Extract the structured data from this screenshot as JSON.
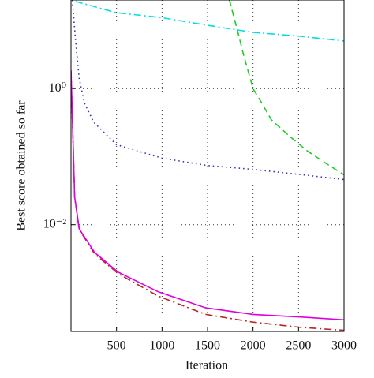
{
  "chart_data": {
    "type": "line",
    "x_label": "Iteration",
    "y_label": "Best score obtained so far",
    "xlim": [
      0,
      3000
    ],
    "ylim": [
      0.00027,
      20
    ],
    "log_y": true,
    "grid": true,
    "xticks": [
      500,
      1000,
      1500,
      2000,
      2500,
      3000
    ],
    "yticks": [
      {
        "value": 1,
        "label": "10⁰"
      },
      {
        "value": 0.01,
        "label": "10⁻²"
      }
    ],
    "series": [
      {
        "color": "#00dede",
        "style": "dashdot",
        "x": [
          50,
          500,
          1000,
          1500,
          2000,
          2500,
          3000
        ],
        "values": [
          19,
          13,
          11,
          8.5,
          6.7,
          5.9,
          5.0
        ]
      },
      {
        "color": "#22cc22",
        "style": "dashed",
        "x": [
          1740,
          1830,
          1900,
          2000,
          2100,
          2200,
          2400,
          2600,
          2800,
          3000
        ],
        "values": [
          20,
          7,
          3,
          1,
          0.6,
          0.35,
          0.2,
          0.12,
          0.08,
          0.054
        ]
      },
      {
        "color": "#3333aa",
        "style": "dotted",
        "x": [
          15,
          50,
          90,
          150,
          250,
          500,
          1000,
          1500,
          2000,
          2500,
          3000
        ],
        "values": [
          20,
          5,
          1.4,
          0.6,
          0.32,
          0.15,
          0.095,
          0.074,
          0.065,
          0.055,
          0.046
        ]
      },
      {
        "color": "#bb2222",
        "style": "dashdot",
        "x": [
          0,
          40,
          90,
          260,
          520,
          960,
          1480,
          2000,
          2520,
          3000
        ],
        "values": [
          1.8,
          0.025,
          0.0085,
          0.0037,
          0.0019,
          0.00089,
          0.00048,
          0.00037,
          0.00031,
          0.00028
        ]
      },
      {
        "color": "#dd00dd",
        "style": "solid",
        "x": [
          0,
          40,
          90,
          260,
          520,
          960,
          1480,
          2000,
          2520,
          3000
        ],
        "values": [
          1.85,
          0.0256,
          0.0087,
          0.0039,
          0.002,
          0.00103,
          0.0006,
          0.00048,
          0.00044,
          0.0004
        ]
      }
    ]
  }
}
